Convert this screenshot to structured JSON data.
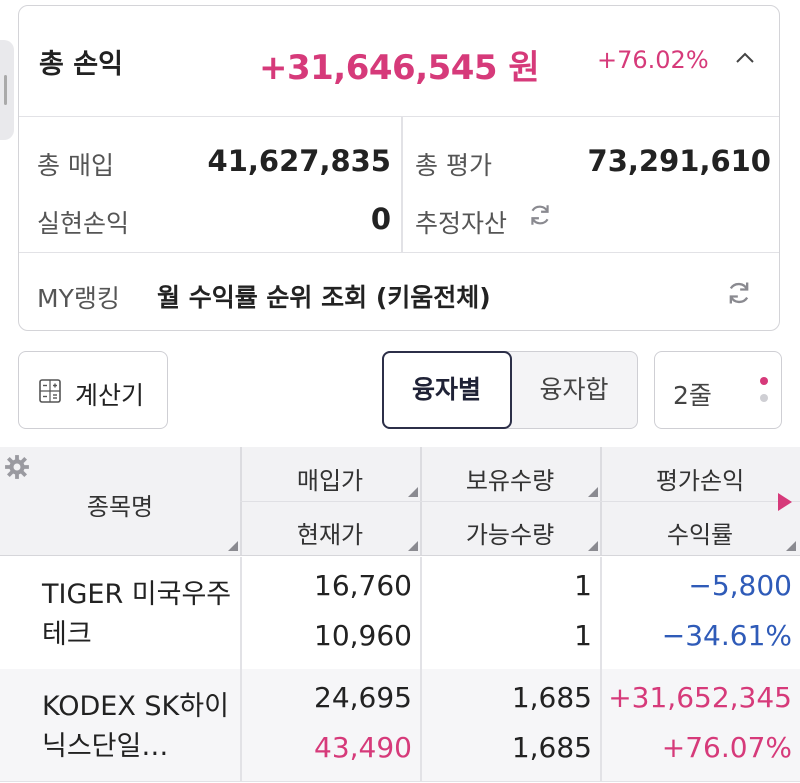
{
  "summary": {
    "total_pl_label": "총 손익",
    "total_pl_value": "+31,646,545",
    "total_pl_unit": "원",
    "total_pl_pct": "+76.02%",
    "purchase_label": "총 매입",
    "purchase_value": "41,627,835",
    "evaluation_label": "총 평가",
    "evaluation_value": "73,291,610",
    "realized_label": "실현손익",
    "realized_value": "0",
    "estimated_label": "추정자산",
    "ranking_label": "MY랭킹",
    "ranking_text": "월 수익률 순위 조회 (키움전체)"
  },
  "controls": {
    "calculator_label": "계산기",
    "segment_by_loan": "융자별",
    "segment_loan_sum": "융자합",
    "rows_label": "2줄"
  },
  "table": {
    "headers": {
      "name": "종목명",
      "buy_price": "매입가",
      "current_price": "현재가",
      "holding_qty": "보유수량",
      "available_qty": "가능수량",
      "eval_pl": "평가손익",
      "return_rate": "수익률"
    },
    "rows": [
      {
        "name": "TIGER 미국우주테크",
        "buy_price": "16,760",
        "current_price": "10,960",
        "holding_qty": "1",
        "available_qty": "1",
        "eval_pl": "−5,800",
        "return_rate": "−34.61%"
      },
      {
        "name": "KODEX SK하이닉스단일…",
        "buy_price": "24,695",
        "current_price": "43,490",
        "holding_qty": "1,685",
        "available_qty": "1,685",
        "eval_pl": "+31,652,345",
        "return_rate": "+76.07%"
      }
    ]
  },
  "colors": {
    "positive": "#d63a7a",
    "negative": "#2f5bb8",
    "border": "#cfcfd4"
  },
  "icons": [
    "chevron-up-icon",
    "refresh-icon",
    "calculator-icon",
    "gear-icon",
    "sort-triangle-icon"
  ]
}
